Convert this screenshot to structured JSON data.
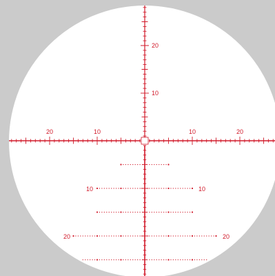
{
  "colors": {
    "background": "#cbcbcb",
    "field": "#ffffff",
    "reticle": "#d11a2a"
  },
  "reticle": {
    "labels": {
      "vertical_up_20": "20",
      "vertical_up_10": "10",
      "horizontal_left_20": "20",
      "horizontal_left_10": "10",
      "horizontal_right_10": "10",
      "horizontal_right_20": "20",
      "tree_left_10": "10",
      "tree_right_10": "10",
      "tree_left_20": "20",
      "tree_right_20": "20"
    }
  }
}
